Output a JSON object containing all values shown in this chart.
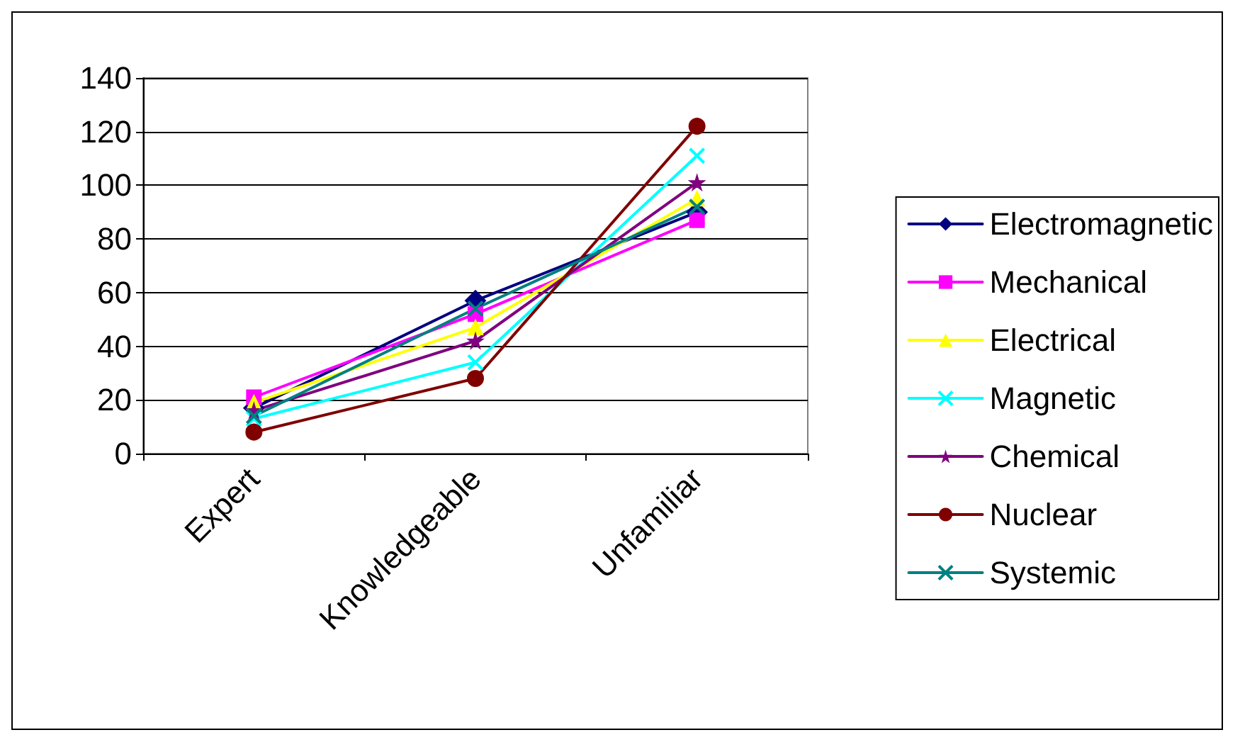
{
  "chart_data": {
    "type": "line",
    "categories": [
      "Expert",
      "Knowledgeable",
      "Unfamiliar"
    ],
    "series": [
      {
        "name": "Electromagnetic",
        "color": "#000080",
        "marker": "diamond",
        "values": [
          17,
          57,
          90
        ]
      },
      {
        "name": "Mechanical",
        "color": "#ff00ff",
        "marker": "square",
        "values": [
          21,
          52,
          87
        ]
      },
      {
        "name": "Electrical",
        "color": "#ffff00",
        "marker": "triangle",
        "values": [
          19,
          47,
          95
        ]
      },
      {
        "name": "Magnetic",
        "color": "#00ffff",
        "marker": "cross",
        "values": [
          13,
          34,
          111
        ]
      },
      {
        "name": "Chemical",
        "color": "#800080",
        "marker": "star",
        "values": [
          16,
          42,
          101
        ]
      },
      {
        "name": "Nuclear",
        "color": "#800000",
        "marker": "circle",
        "values": [
          8,
          28,
          122
        ]
      },
      {
        "name": "Systemic",
        "color": "#008080",
        "marker": "cross",
        "values": [
          14,
          54,
          92
        ]
      }
    ],
    "ylim": [
      0,
      140
    ],
    "yticks": [
      0,
      20,
      40,
      60,
      80,
      100,
      120,
      140
    ],
    "grid": "y",
    "legend": "right"
  }
}
